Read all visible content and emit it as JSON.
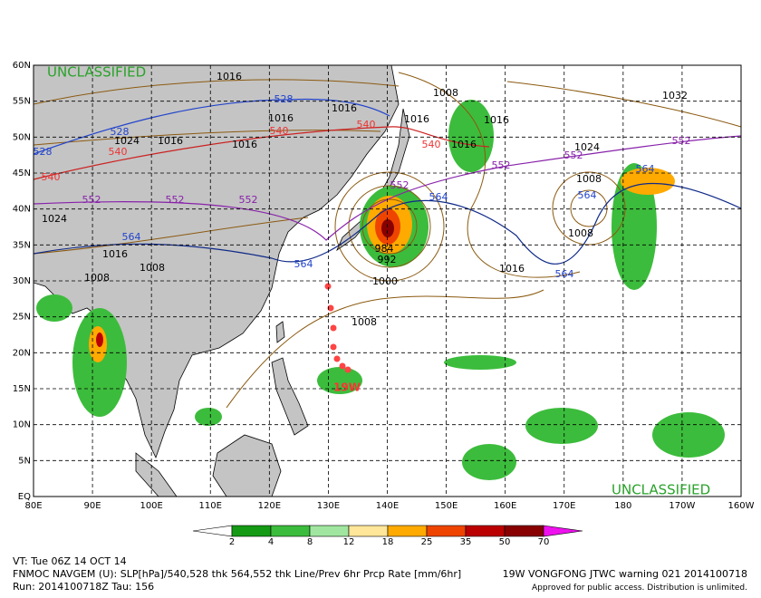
{
  "map": {
    "classification_top": "UNCLASSIFIED",
    "classification_bottom": "UNCLASSIFIED",
    "lat_labels": [
      "60N",
      "55N",
      "50N",
      "45N",
      "40N",
      "35N",
      "30N",
      "25N",
      "20N",
      "15N",
      "10N",
      "5N",
      "EQ"
    ],
    "lon_labels": [
      "80E",
      "90E",
      "100E",
      "110E",
      "120E",
      "130E",
      "140E",
      "150E",
      "160E",
      "170E",
      "180",
      "170W",
      "160W"
    ],
    "storm_label": "19W",
    "contour_labels": [
      "1016",
      "1016",
      "1016",
      "1016",
      "1016",
      "1016",
      "1016",
      "1016",
      "1016",
      "1016",
      "528",
      "528",
      "528",
      "540",
      "540",
      "540",
      "540",
      "540",
      "552",
      "552",
      "552",
      "552",
      "552",
      "552",
      "552",
      "564",
      "564",
      "564",
      "564",
      "564",
      "564",
      "1008",
      "1008",
      "1008",
      "1008",
      "1008",
      "1008",
      "1024",
      "1024",
      "1024",
      "1032",
      "1000",
      "992",
      "984"
    ]
  },
  "colorbar": {
    "labels": [
      2,
      4,
      8,
      12,
      18,
      25,
      35,
      50,
      70
    ],
    "colors": [
      "#ffffff",
      "#159a15",
      "#3cbc3c",
      "#a0e6a0",
      "#ffe699",
      "#ffaa00",
      "#ee4400",
      "#bb0000",
      "#880000",
      "#ee11ee"
    ]
  },
  "footer": {
    "valid_time": "VT: Tue 06Z 14 OCT 14",
    "description": "FNMOC NAVGEM (U): SLP[hPa]/540,528 thk 564,552 thk Line/Prev 6hr Prcp Rate [mm/6hr]",
    "run": "Run: 2014100718Z Tau: 156",
    "warning": "19W VONGFONG JTWC warning 021 2014100718",
    "release": "Approved for public access. Distribution is unlimited."
  }
}
